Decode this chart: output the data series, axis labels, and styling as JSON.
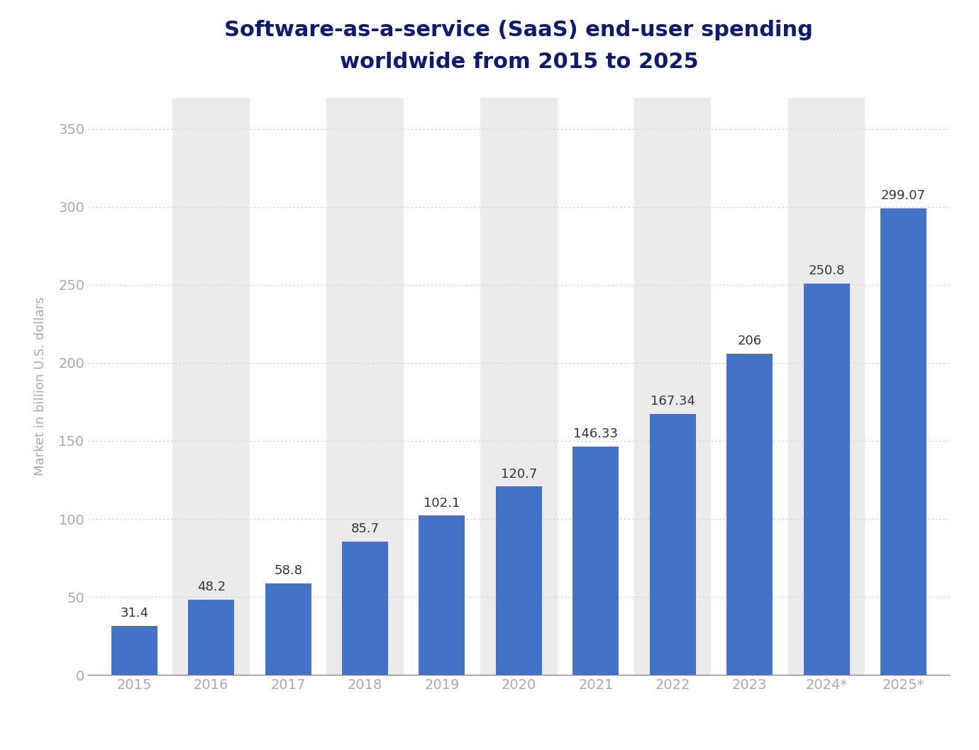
{
  "title_line1": "Software-as-a-service (SaaS) end-user spending",
  "title_line2": "worldwide from 2015 to 2025",
  "ylabel": "Market in billion U.S. dollars",
  "categories": [
    "2015",
    "2016",
    "2017",
    "2018",
    "2019",
    "2020",
    "2021",
    "2022",
    "2023",
    "2024*",
    "2025*"
  ],
  "values": [
    31.4,
    48.2,
    58.8,
    85.7,
    102.1,
    120.7,
    146.33,
    167.34,
    206,
    250.8,
    299.07
  ],
  "bar_color": "#4472c4",
  "background_color": "#ffffff",
  "plot_bg_color": "#ffffff",
  "stripe_color": "#ebebeb",
  "title_color": "#0d1a6e",
  "ylabel_color": "#aaaaaa",
  "tick_color": "#aaaaaa",
  "grid_color": "#cccccc",
  "label_color": "#333333",
  "ylim": [
    0,
    370
  ],
  "yticks": [
    0,
    50,
    100,
    150,
    200,
    250,
    300,
    350
  ],
  "title_fontsize": 22,
  "ylabel_fontsize": 13,
  "tick_fontsize": 14,
  "bar_label_fontsize": 13,
  "bar_width": 0.6
}
